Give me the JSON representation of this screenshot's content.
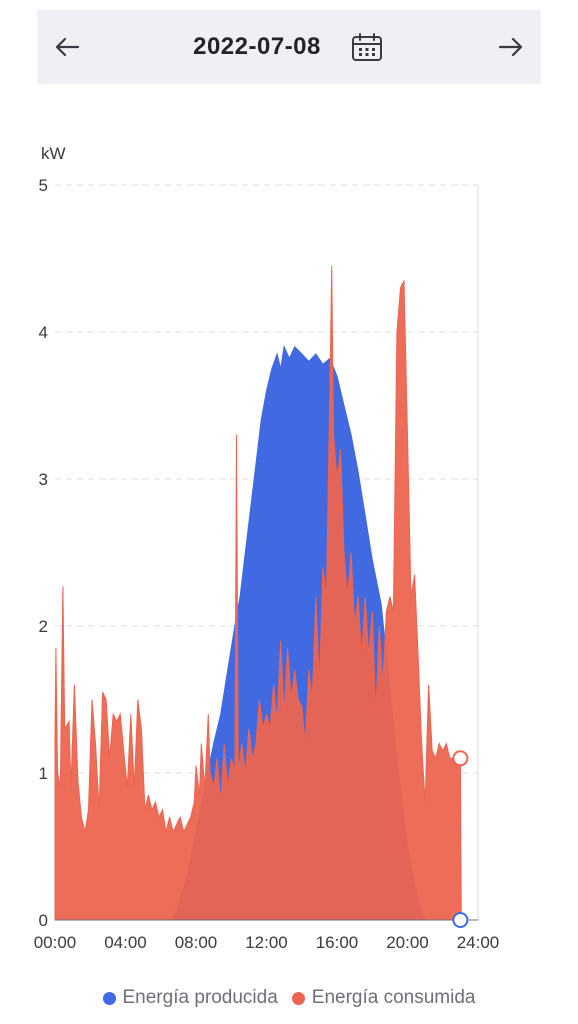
{
  "header": {
    "date": "2022-07-08",
    "prev_icon": "arrow-left-icon",
    "next_icon": "arrow-right-icon",
    "calendar_icon": "calendar-icon"
  },
  "chart_data": {
    "type": "area",
    "title": "",
    "xlabel": "",
    "ylabel": "kW",
    "xlim": [
      0,
      24
    ],
    "ylim": [
      0,
      5
    ],
    "x_ticks": [
      "00:00",
      "04:00",
      "08:00",
      "12:00",
      "16:00",
      "20:00",
      "24:00"
    ],
    "y_ticks": [
      "0",
      "1",
      "2",
      "3",
      "4",
      "5"
    ],
    "grid": true,
    "legend_position": "bottom",
    "series": [
      {
        "name": "Energía producida",
        "color": "#4169e1",
        "points": [
          [
            6.6,
            0
          ],
          [
            7.0,
            0.1
          ],
          [
            7.5,
            0.3
          ],
          [
            8.0,
            0.6
          ],
          [
            8.5,
            0.9
          ],
          [
            9.0,
            1.2
          ],
          [
            9.4,
            1.4
          ],
          [
            9.8,
            1.7
          ],
          [
            10.2,
            2.0
          ],
          [
            10.5,
            2.2
          ],
          [
            10.8,
            2.5
          ],
          [
            11.1,
            2.8
          ],
          [
            11.4,
            3.1
          ],
          [
            11.7,
            3.4
          ],
          [
            12.0,
            3.6
          ],
          [
            12.3,
            3.75
          ],
          [
            12.6,
            3.85
          ],
          [
            12.8,
            3.75
          ],
          [
            13.0,
            3.9
          ],
          [
            13.3,
            3.82
          ],
          [
            13.6,
            3.9
          ],
          [
            14.0,
            3.85
          ],
          [
            14.4,
            3.8
          ],
          [
            14.8,
            3.85
          ],
          [
            15.2,
            3.78
          ],
          [
            15.6,
            3.82
          ],
          [
            16.0,
            3.7
          ],
          [
            16.4,
            3.5
          ],
          [
            16.8,
            3.3
          ],
          [
            17.2,
            3.05
          ],
          [
            17.6,
            2.75
          ],
          [
            18.0,
            2.45
          ],
          [
            18.5,
            2.15
          ],
          [
            18.9,
            1.7
          ],
          [
            19.3,
            1.2
          ],
          [
            19.7,
            0.8
          ],
          [
            20.0,
            0.5
          ],
          [
            20.4,
            0.25
          ],
          [
            20.8,
            0.05
          ],
          [
            21.0,
            0
          ]
        ]
      },
      {
        "name": "Energía consumida",
        "color": "#ec6550",
        "points": [
          [
            0.0,
            1.25
          ],
          [
            0.05,
            1.85
          ],
          [
            0.15,
            1.0
          ],
          [
            0.3,
            0.9
          ],
          [
            0.45,
            2.27
          ],
          [
            0.55,
            1.3
          ],
          [
            0.8,
            1.35
          ],
          [
            0.9,
            0.9
          ],
          [
            1.1,
            1.6
          ],
          [
            1.3,
            0.95
          ],
          [
            1.5,
            0.7
          ],
          [
            1.7,
            0.6
          ],
          [
            1.9,
            0.75
          ],
          [
            2.1,
            1.5
          ],
          [
            2.3,
            1.2
          ],
          [
            2.5,
            0.75
          ],
          [
            2.7,
            1.55
          ],
          [
            2.9,
            1.5
          ],
          [
            3.1,
            1.1
          ],
          [
            3.3,
            1.4
          ],
          [
            3.5,
            1.35
          ],
          [
            3.7,
            1.4
          ],
          [
            3.9,
            1.15
          ],
          [
            4.1,
            0.9
          ],
          [
            4.3,
            1.4
          ],
          [
            4.5,
            0.9
          ],
          [
            4.7,
            1.5
          ],
          [
            4.9,
            1.3
          ],
          [
            5.1,
            0.75
          ],
          [
            5.3,
            0.85
          ],
          [
            5.5,
            0.75
          ],
          [
            5.7,
            0.8
          ],
          [
            5.9,
            0.7
          ],
          [
            6.1,
            0.75
          ],
          [
            6.3,
            0.6
          ],
          [
            6.5,
            0.7
          ],
          [
            6.7,
            0.6
          ],
          [
            6.9,
            0.65
          ],
          [
            7.1,
            0.7
          ],
          [
            7.3,
            0.6
          ],
          [
            7.5,
            0.65
          ],
          [
            7.7,
            0.7
          ],
          [
            7.9,
            0.8
          ],
          [
            8.0,
            1.05
          ],
          [
            8.2,
            0.85
          ],
          [
            8.3,
            1.2
          ],
          [
            8.5,
            0.9
          ],
          [
            8.7,
            1.4
          ],
          [
            8.8,
            1.0
          ],
          [
            9.0,
            0.9
          ],
          [
            9.2,
            1.1
          ],
          [
            9.4,
            0.8
          ],
          [
            9.6,
            1.2
          ],
          [
            9.8,
            0.9
          ],
          [
            10.0,
            1.1
          ],
          [
            10.2,
            1.0
          ],
          [
            10.3,
            3.3
          ],
          [
            10.4,
            1.0
          ],
          [
            10.6,
            1.2
          ],
          [
            10.8,
            1.0
          ],
          [
            11.0,
            1.3
          ],
          [
            11.2,
            1.1
          ],
          [
            11.4,
            1.2
          ],
          [
            11.6,
            1.5
          ],
          [
            11.8,
            1.3
          ],
          [
            12.0,
            1.4
          ],
          [
            12.2,
            1.3
          ],
          [
            12.4,
            1.6
          ],
          [
            12.6,
            1.35
          ],
          [
            12.8,
            1.9
          ],
          [
            13.0,
            1.4
          ],
          [
            13.2,
            1.85
          ],
          [
            13.4,
            1.5
          ],
          [
            13.6,
            1.7
          ],
          [
            13.8,
            1.5
          ],
          [
            14.0,
            1.45
          ],
          [
            14.2,
            1.2
          ],
          [
            14.4,
            1.7
          ],
          [
            14.6,
            1.5
          ],
          [
            14.8,
            2.2
          ],
          [
            15.0,
            1.6
          ],
          [
            15.2,
            2.4
          ],
          [
            15.4,
            2.2
          ],
          [
            15.6,
            3.6
          ],
          [
            15.7,
            4.45
          ],
          [
            15.8,
            3.3
          ],
          [
            16.0,
            3.0
          ],
          [
            16.2,
            3.2
          ],
          [
            16.4,
            2.5
          ],
          [
            16.6,
            2.2
          ],
          [
            16.8,
            2.5
          ],
          [
            17.0,
            2.0
          ],
          [
            17.2,
            2.2
          ],
          [
            17.4,
            1.8
          ],
          [
            17.6,
            2.2
          ],
          [
            17.8,
            1.8
          ],
          [
            18.0,
            2.1
          ],
          [
            18.2,
            1.4
          ],
          [
            18.4,
            2.0
          ],
          [
            18.6,
            1.6
          ],
          [
            18.8,
            2.1
          ],
          [
            19.0,
            2.2
          ],
          [
            19.2,
            2.1
          ],
          [
            19.4,
            4.0
          ],
          [
            19.6,
            4.3
          ],
          [
            19.8,
            4.35
          ],
          [
            20.0,
            3.3
          ],
          [
            20.2,
            2.2
          ],
          [
            20.4,
            2.35
          ],
          [
            20.6,
            1.8
          ],
          [
            20.8,
            1.2
          ],
          [
            21.0,
            0.8
          ],
          [
            21.2,
            1.6
          ],
          [
            21.4,
            1.15
          ],
          [
            21.6,
            1.1
          ],
          [
            21.8,
            1.2
          ],
          [
            22.0,
            1.15
          ],
          [
            22.2,
            1.2
          ],
          [
            22.4,
            1.1
          ],
          [
            22.6,
            1.1
          ],
          [
            22.8,
            1.1
          ],
          [
            23.0,
            1.1
          ],
          [
            23.05,
            0
          ]
        ]
      }
    ],
    "end_markers": [
      {
        "series": "Energía consumida",
        "x": 23.0,
        "y": 1.1
      },
      {
        "series": "Energía producida",
        "x": 23.0,
        "y": 0
      }
    ]
  },
  "legend": {
    "items": [
      {
        "label": "Energía producida",
        "color": "#4169e1"
      },
      {
        "label": "Energía consumida",
        "color": "#ec6550"
      }
    ]
  }
}
